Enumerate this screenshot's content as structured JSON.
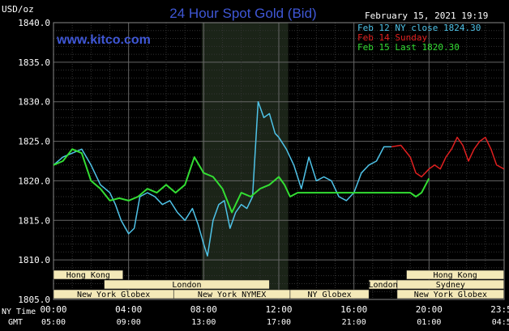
{
  "chart_data": {
    "type": "line",
    "title": "24 Hour Spot Gold (Bid)",
    "site": "www.kitco.com",
    "unit_label": "USD/oz",
    "timestamp": "February 15, 2021 19:19",
    "ylim": [
      1805,
      1840
    ],
    "y_ticks": [
      "1840.0",
      "1835.0",
      "1830.0",
      "1825.0",
      "1820.0",
      "1815.0",
      "1810.0",
      "1805.0"
    ],
    "x_ticks_ny": [
      "00:00",
      "04:00",
      "08:00",
      "12:00",
      "16:00",
      "20:00",
      "23:59"
    ],
    "x_ticks_gmt": [
      "05:00",
      "09:00",
      "13:00",
      "17:00",
      "21:00",
      "01:00",
      "04:59"
    ],
    "x_label_ny": "NY Time",
    "x_label_gmt": "GMT",
    "legend": [
      {
        "label": "Feb 12 NY close 1824.30",
        "color": "#4fc3e8"
      },
      {
        "label": "Feb 14 Sunday",
        "color": "#e02020"
      },
      {
        "label": "Feb 15 Last 1820.30",
        "color": "#33dd33"
      }
    ],
    "series": [
      {
        "name": "Feb 12 NY close 1824.30",
        "color": "#4fc3e8",
        "x": [
          0,
          0.5,
          1,
          1.5,
          2,
          2.5,
          3,
          3.3,
          3.6,
          4,
          4.3,
          4.6,
          5,
          5.4,
          5.8,
          6.2,
          6.6,
          7,
          7.4,
          7.7,
          8,
          8.2,
          8.5,
          8.8,
          9.1,
          9.4,
          9.7,
          10,
          10.3,
          10.6,
          10.9,
          11.2,
          11.5,
          11.8,
          12,
          12.4,
          12.8,
          13.2,
          13.6,
          14,
          14.4,
          14.8,
          15.2,
          15.6,
          16,
          16.4,
          16.8,
          17.2,
          17.6,
          18
        ],
        "y": [
          1822,
          1823,
          1823.5,
          1824,
          1822,
          1819.5,
          1818.5,
          1817,
          1815,
          1813.3,
          1814,
          1818,
          1818.5,
          1818,
          1817,
          1817.5,
          1816,
          1815,
          1816.5,
          1814.5,
          1812,
          1810.5,
          1815,
          1817,
          1817.5,
          1814,
          1816,
          1817,
          1816.5,
          1818,
          1830,
          1828,
          1828.5,
          1826,
          1825.5,
          1824,
          1822,
          1819,
          1823,
          1820,
          1820.5,
          1820,
          1818,
          1817.5,
          1818.5,
          1821,
          1822,
          1822.5,
          1824.3,
          1824.3
        ]
      },
      {
        "name": "Feb 14 Sunday",
        "color": "#e02020",
        "x": [
          18,
          18.5,
          19,
          19.3,
          19.6,
          20,
          20.3,
          20.6,
          20.9,
          21.2,
          21.5,
          21.8,
          22.1,
          22.4,
          22.7,
          23,
          23.3,
          23.6,
          23.99
        ],
        "y": [
          1824.3,
          1824.5,
          1823,
          1821,
          1820.5,
          1821.5,
          1822,
          1821.5,
          1823,
          1824,
          1825.5,
          1824.5,
          1822.5,
          1824,
          1825,
          1825.5,
          1824,
          1822,
          1821.5
        ]
      },
      {
        "name": "Feb 15 Last 1820.30",
        "color": "#33dd33",
        "x": [
          0,
          0.5,
          1,
          1.5,
          2,
          2.5,
          3,
          3.5,
          4,
          4.5,
          5,
          5.5,
          6,
          6.5,
          7,
          7.5,
          8,
          8.5,
          9,
          9.5,
          10,
          10.5,
          11,
          11.5,
          12,
          12.3,
          12.6,
          13,
          14,
          15,
          16,
          17,
          17.5,
          18,
          18.5,
          19,
          19.3,
          19.6,
          20
        ],
        "y": [
          1822,
          1822.5,
          1824,
          1823.5,
          1820,
          1819,
          1817.5,
          1817.8,
          1817.5,
          1818,
          1819,
          1818.5,
          1819.5,
          1818.5,
          1819.5,
          1823,
          1821,
          1820.5,
          1819,
          1816,
          1818.5,
          1818,
          1819,
          1819.5,
          1820.5,
          1819.5,
          1818,
          1818.5,
          1818.5,
          1818.5,
          1818.5,
          1818.5,
          1818.5,
          1818.5,
          1818.5,
          1818.5,
          1818,
          1818.5,
          1820.3
        ]
      }
    ],
    "sessions": [
      {
        "label": "Hong Kong",
        "start": 0,
        "end": 3.7,
        "row": 0
      },
      {
        "label": "London",
        "start": 2.7,
        "end": 11.5,
        "row": 1
      },
      {
        "label": "New York Globex",
        "start": 0,
        "end": 6.4,
        "row": 2
      },
      {
        "label": "New York NYMEX",
        "start": 6.4,
        "end": 12.6,
        "row": 2
      },
      {
        "label": "NY Globex",
        "start": 12.6,
        "end": 16.8,
        "row": 2
      },
      {
        "label": "Hong Kong",
        "start": 18.8,
        "end": 23.99,
        "row": 0
      },
      {
        "label": "London",
        "start": 16.8,
        "end": 18.3,
        "row": 1
      },
      {
        "label": "Sydney",
        "start": 18.3,
        "end": 23.99,
        "row": 1
      },
      {
        "label": "New York Globex",
        "start": 18.3,
        "end": 23.99,
        "row": 2
      }
    ],
    "highlight_range": [
      7.9,
      12.5
    ]
  }
}
